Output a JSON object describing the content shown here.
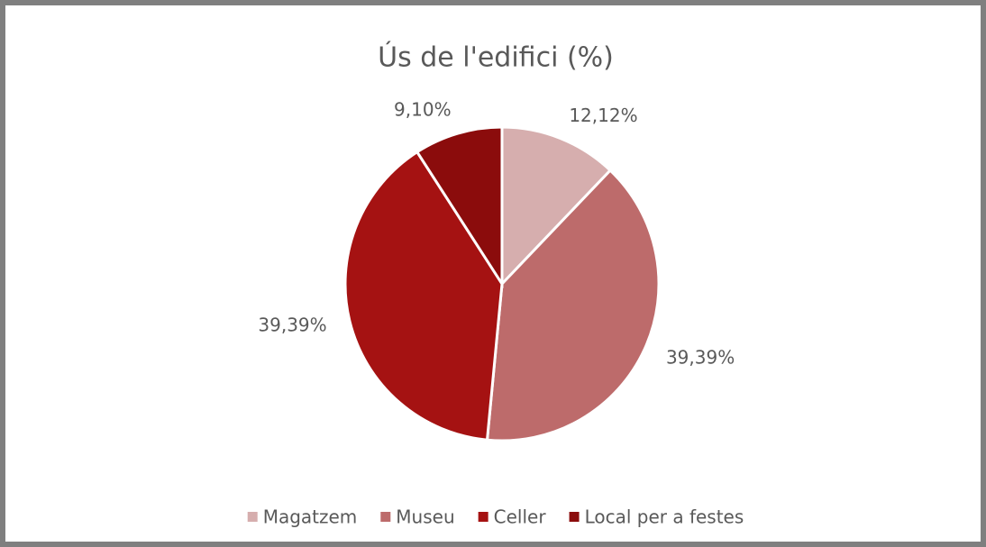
{
  "chart_data": {
    "type": "pie",
    "title": "Ús de l'edifici (%)",
    "categories": [
      "Magatzem",
      "Museu",
      "Celler",
      "Local per a festes"
    ],
    "values": [
      12.12,
      39.39,
      39.39,
      9.1
    ],
    "value_labels": [
      "12,12%",
      "39,39%",
      "39,39%",
      "9,10%"
    ],
    "colors": [
      "#d6aeae",
      "#bd6b6b",
      "#a51212",
      "#8b0c0c"
    ],
    "legend": "bottom"
  }
}
